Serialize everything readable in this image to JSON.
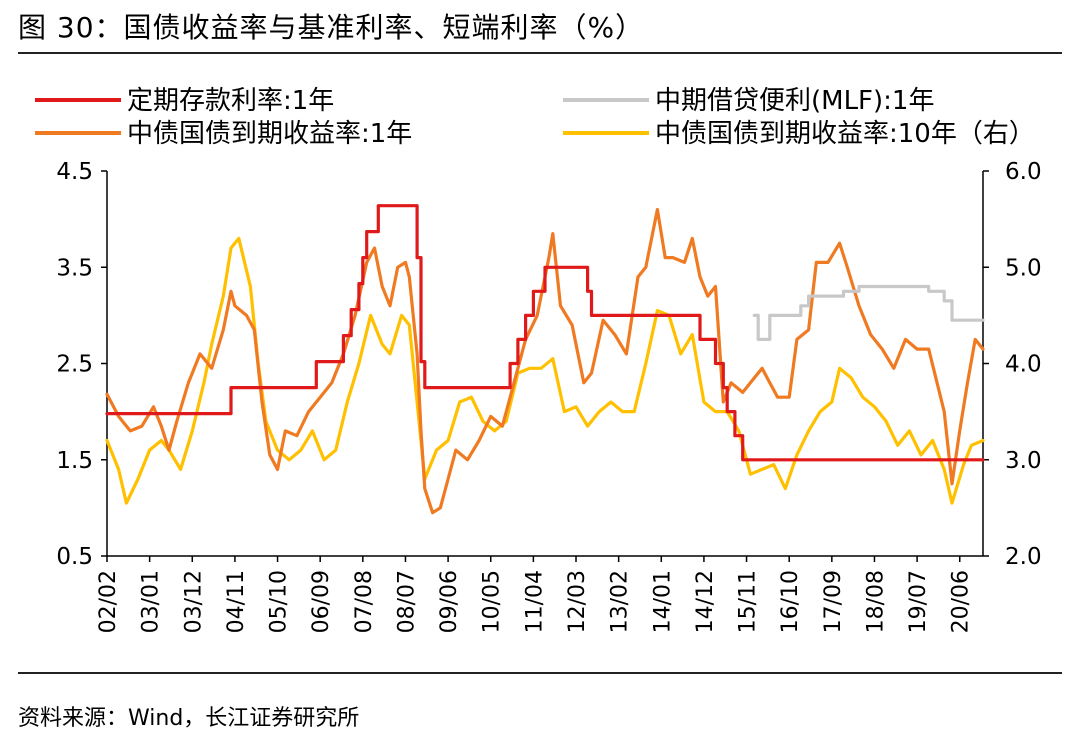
{
  "title": "图 30：国债收益率与基准利率、短端利率（%）",
  "source": "资料来源：Wind，长江证券研究所",
  "chart_data": {
    "type": "line",
    "x_tick_labels": [
      "02/02",
      "03/01",
      "03/12",
      "04/11",
      "05/10",
      "06/09",
      "07/08",
      "08/07",
      "09/06",
      "10/05",
      "11/04",
      "12/03",
      "13/02",
      "14/01",
      "14/12",
      "15/11",
      "16/10",
      "17/09",
      "18/08",
      "19/07",
      "20/06"
    ],
    "x_range": [
      "2002-02",
      "2020-12"
    ],
    "left_axis": {
      "ylim": [
        0.5,
        4.5
      ],
      "ticks": [
        "0.5",
        "1.5",
        "2.5",
        "3.5",
        "4.5"
      ]
    },
    "right_axis": {
      "ylim": [
        2.0,
        6.0
      ],
      "ticks": [
        "2.0",
        "3.0",
        "4.0",
        "5.0",
        "6.0"
      ]
    },
    "grid": false,
    "legend_position": "top",
    "series": [
      {
        "name": "定期存款利率:1年",
        "color": "#e01a1a",
        "axis": "left",
        "step": true,
        "points": [
          [
            "2002-02",
            1.98
          ],
          [
            "2004-10",
            1.98
          ],
          [
            "2004-10",
            2.25
          ],
          [
            "2006-08",
            2.25
          ],
          [
            "2006-08",
            2.52
          ],
          [
            "2007-03",
            2.52
          ],
          [
            "2007-03",
            2.79
          ],
          [
            "2007-05",
            2.79
          ],
          [
            "2007-05",
            3.06
          ],
          [
            "2007-07",
            3.06
          ],
          [
            "2007-07",
            3.33
          ],
          [
            "2007-08",
            3.33
          ],
          [
            "2007-08",
            3.6
          ],
          [
            "2007-09",
            3.6
          ],
          [
            "2007-09",
            3.87
          ],
          [
            "2007-12",
            3.87
          ],
          [
            "2007-12",
            4.14
          ],
          [
            "2008-10",
            4.14
          ],
          [
            "2008-10",
            3.87
          ],
          [
            "2008-10",
            3.6
          ],
          [
            "2008-11",
            3.6
          ],
          [
            "2008-11",
            2.52
          ],
          [
            "2008-12",
            2.52
          ],
          [
            "2008-12",
            2.25
          ],
          [
            "2010-10",
            2.25
          ],
          [
            "2010-10",
            2.5
          ],
          [
            "2010-12",
            2.5
          ],
          [
            "2010-12",
            2.75
          ],
          [
            "2011-02",
            2.75
          ],
          [
            "2011-02",
            3.0
          ],
          [
            "2011-04",
            3.0
          ],
          [
            "2011-04",
            3.25
          ],
          [
            "2011-07",
            3.25
          ],
          [
            "2011-07",
            3.5
          ],
          [
            "2012-06",
            3.5
          ],
          [
            "2012-06",
            3.25
          ],
          [
            "2012-07",
            3.25
          ],
          [
            "2012-07",
            3.0
          ],
          [
            "2014-11",
            3.0
          ],
          [
            "2014-11",
            2.75
          ],
          [
            "2015-03",
            2.75
          ],
          [
            "2015-03",
            2.5
          ],
          [
            "2015-05",
            2.5
          ],
          [
            "2015-05",
            2.25
          ],
          [
            "2015-06",
            2.25
          ],
          [
            "2015-06",
            2.0
          ],
          [
            "2015-08",
            2.0
          ],
          [
            "2015-08",
            1.75
          ],
          [
            "2015-10",
            1.75
          ],
          [
            "2015-10",
            1.5
          ],
          [
            "2020-12",
            1.5
          ]
        ]
      },
      {
        "name": "中期借贷便利(MLF):1年",
        "color": "#c8c8c8",
        "axis": "left",
        "step": true,
        "points": [
          [
            "2016-01",
            3.0
          ],
          [
            "2016-02",
            3.0
          ],
          [
            "2016-02",
            2.75
          ],
          [
            "2016-05",
            2.75
          ],
          [
            "2016-05",
            3.0
          ],
          [
            "2017-01",
            3.0
          ],
          [
            "2017-01",
            3.1
          ],
          [
            "2017-03",
            3.1
          ],
          [
            "2017-03",
            3.2
          ],
          [
            "2017-12",
            3.2
          ],
          [
            "2017-12",
            3.25
          ],
          [
            "2018-04",
            3.25
          ],
          [
            "2018-04",
            3.3
          ],
          [
            "2019-10",
            3.3
          ],
          [
            "2019-10",
            3.25
          ],
          [
            "2020-02",
            3.25
          ],
          [
            "2020-02",
            3.15
          ],
          [
            "2020-04",
            3.15
          ],
          [
            "2020-04",
            2.95
          ],
          [
            "2020-12",
            2.95
          ]
        ]
      },
      {
        "name": "中债国债到期收益率:1年",
        "color": "#f07a22",
        "axis": "left",
        "points": [
          [
            "2002-02",
            2.18
          ],
          [
            "2002-05",
            1.95
          ],
          [
            "2002-08",
            1.8
          ],
          [
            "2002-11",
            1.85
          ],
          [
            "2003-02",
            2.05
          ],
          [
            "2003-04",
            1.85
          ],
          [
            "2003-06",
            1.6
          ],
          [
            "2003-08",
            1.9
          ],
          [
            "2003-11",
            2.3
          ],
          [
            "2004-02",
            2.6
          ],
          [
            "2004-05",
            2.45
          ],
          [
            "2004-08",
            2.85
          ],
          [
            "2004-10",
            3.25
          ],
          [
            "2004-11",
            3.1
          ],
          [
            "2005-02",
            3.0
          ],
          [
            "2005-04",
            2.85
          ],
          [
            "2005-06",
            2.1
          ],
          [
            "2005-08",
            1.55
          ],
          [
            "2005-10",
            1.4
          ],
          [
            "2005-12",
            1.8
          ],
          [
            "2006-03",
            1.75
          ],
          [
            "2006-06",
            2.0
          ],
          [
            "2006-09",
            2.15
          ],
          [
            "2006-12",
            2.3
          ],
          [
            "2007-03",
            2.6
          ],
          [
            "2007-06",
            3.0
          ],
          [
            "2007-09",
            3.55
          ],
          [
            "2007-11",
            3.7
          ],
          [
            "2008-01",
            3.3
          ],
          [
            "2008-03",
            3.1
          ],
          [
            "2008-05",
            3.5
          ],
          [
            "2008-07",
            3.55
          ],
          [
            "2008-08",
            3.4
          ],
          [
            "2008-10",
            2.6
          ],
          [
            "2008-11",
            1.8
          ],
          [
            "2008-12",
            1.2
          ],
          [
            "2009-02",
            0.95
          ],
          [
            "2009-04",
            1.0
          ],
          [
            "2009-06",
            1.3
          ],
          [
            "2009-08",
            1.6
          ],
          [
            "2009-11",
            1.5
          ],
          [
            "2010-02",
            1.7
          ],
          [
            "2010-05",
            1.95
          ],
          [
            "2010-08",
            1.85
          ],
          [
            "2010-11",
            2.3
          ],
          [
            "2011-02",
            2.75
          ],
          [
            "2011-05",
            3.0
          ],
          [
            "2011-08",
            3.6
          ],
          [
            "2011-09",
            3.85
          ],
          [
            "2011-11",
            3.1
          ],
          [
            "2012-02",
            2.9
          ],
          [
            "2012-05",
            2.3
          ],
          [
            "2012-07",
            2.4
          ],
          [
            "2012-10",
            2.95
          ],
          [
            "2013-01",
            2.8
          ],
          [
            "2013-04",
            2.6
          ],
          [
            "2013-07",
            3.4
          ],
          [
            "2013-09",
            3.5
          ],
          [
            "2013-12",
            4.1
          ],
          [
            "2014-02",
            3.6
          ],
          [
            "2014-04",
            3.6
          ],
          [
            "2014-07",
            3.55
          ],
          [
            "2014-09",
            3.8
          ],
          [
            "2014-11",
            3.4
          ],
          [
            "2015-01",
            3.2
          ],
          [
            "2015-03",
            3.3
          ],
          [
            "2015-05",
            2.1
          ],
          [
            "2015-07",
            2.3
          ],
          [
            "2015-10",
            2.2
          ],
          [
            "2016-01",
            2.35
          ],
          [
            "2016-03",
            2.45
          ],
          [
            "2016-05",
            2.3
          ],
          [
            "2016-07",
            2.15
          ],
          [
            "2016-10",
            2.15
          ],
          [
            "2016-12",
            2.75
          ],
          [
            "2017-03",
            2.85
          ],
          [
            "2017-05",
            3.55
          ],
          [
            "2017-08",
            3.55
          ],
          [
            "2017-11",
            3.75
          ],
          [
            "2018-01",
            3.5
          ],
          [
            "2018-04",
            3.1
          ],
          [
            "2018-07",
            2.8
          ],
          [
            "2018-10",
            2.65
          ],
          [
            "2019-01",
            2.45
          ],
          [
            "2019-04",
            2.75
          ],
          [
            "2019-07",
            2.65
          ],
          [
            "2019-10",
            2.65
          ],
          [
            "2020-02",
            2.0
          ],
          [
            "2020-04",
            1.25
          ],
          [
            "2020-06",
            1.8
          ],
          [
            "2020-08",
            2.3
          ],
          [
            "2020-10",
            2.75
          ],
          [
            "2020-12",
            2.65
          ]
        ]
      },
      {
        "name": "中债国债到期收益率:10年（右）",
        "color": "#ffc000",
        "axis": "right",
        "points": [
          [
            "2002-02",
            3.2
          ],
          [
            "2002-05",
            2.9
          ],
          [
            "2002-07",
            2.55
          ],
          [
            "2002-10",
            2.8
          ],
          [
            "2003-01",
            3.1
          ],
          [
            "2003-04",
            3.2
          ],
          [
            "2003-06",
            3.1
          ],
          [
            "2003-09",
            2.9
          ],
          [
            "2003-12",
            3.3
          ],
          [
            "2004-03",
            3.8
          ],
          [
            "2004-05",
            4.2
          ],
          [
            "2004-08",
            4.7
          ],
          [
            "2004-10",
            5.2
          ],
          [
            "2004-12",
            5.3
          ],
          [
            "2005-03",
            4.8
          ],
          [
            "2005-05",
            4.0
          ],
          [
            "2005-07",
            3.4
          ],
          [
            "2005-10",
            3.1
          ],
          [
            "2006-01",
            3.0
          ],
          [
            "2006-04",
            3.1
          ],
          [
            "2006-07",
            3.3
          ],
          [
            "2006-10",
            3.0
          ],
          [
            "2007-01",
            3.1
          ],
          [
            "2007-04",
            3.6
          ],
          [
            "2007-07",
            4.0
          ],
          [
            "2007-10",
            4.5
          ],
          [
            "2008-01",
            4.2
          ],
          [
            "2008-03",
            4.1
          ],
          [
            "2008-06",
            4.5
          ],
          [
            "2008-08",
            4.4
          ],
          [
            "2008-10",
            3.6
          ],
          [
            "2008-12",
            2.8
          ],
          [
            "2009-03",
            3.1
          ],
          [
            "2009-06",
            3.2
          ],
          [
            "2009-09",
            3.6
          ],
          [
            "2009-12",
            3.65
          ],
          [
            "2010-03",
            3.4
          ],
          [
            "2010-06",
            3.3
          ],
          [
            "2010-09",
            3.4
          ],
          [
            "2010-12",
            3.9
          ],
          [
            "2011-03",
            3.95
          ],
          [
            "2011-06",
            3.95
          ],
          [
            "2011-09",
            4.05
          ],
          [
            "2011-12",
            3.5
          ],
          [
            "2012-03",
            3.55
          ],
          [
            "2012-06",
            3.35
          ],
          [
            "2012-09",
            3.5
          ],
          [
            "2012-12",
            3.6
          ],
          [
            "2013-03",
            3.5
          ],
          [
            "2013-06",
            3.5
          ],
          [
            "2013-09",
            4.0
          ],
          [
            "2013-12",
            4.55
          ],
          [
            "2014-03",
            4.5
          ],
          [
            "2014-06",
            4.1
          ],
          [
            "2014-09",
            4.3
          ],
          [
            "2014-12",
            3.6
          ],
          [
            "2015-03",
            3.5
          ],
          [
            "2015-06",
            3.5
          ],
          [
            "2015-09",
            3.3
          ],
          [
            "2015-12",
            2.85
          ],
          [
            "2016-03",
            2.9
          ],
          [
            "2016-06",
            2.95
          ],
          [
            "2016-09",
            2.7
          ],
          [
            "2016-12",
            3.05
          ],
          [
            "2017-03",
            3.3
          ],
          [
            "2017-06",
            3.5
          ],
          [
            "2017-09",
            3.6
          ],
          [
            "2017-11",
            3.95
          ],
          [
            "2018-02",
            3.85
          ],
          [
            "2018-05",
            3.65
          ],
          [
            "2018-08",
            3.55
          ],
          [
            "2018-11",
            3.4
          ],
          [
            "2019-02",
            3.15
          ],
          [
            "2019-05",
            3.3
          ],
          [
            "2019-08",
            3.05
          ],
          [
            "2019-11",
            3.2
          ],
          [
            "2020-02",
            2.9
          ],
          [
            "2020-04",
            2.55
          ],
          [
            "2020-07",
            2.95
          ],
          [
            "2020-09",
            3.15
          ],
          [
            "2020-12",
            3.2
          ]
        ]
      }
    ]
  }
}
